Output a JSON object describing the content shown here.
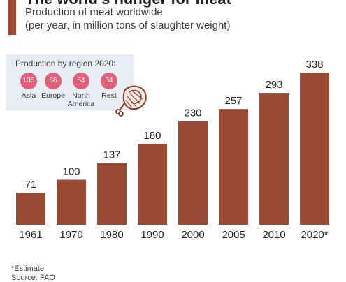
{
  "header": {
    "title": "The world's hunger for meat",
    "subtitle_line1": "Production of meat worldwide",
    "subtitle_line2": "(per year, in million tons of slaughter weight)"
  },
  "regions": {
    "title": "Production by region 2020:",
    "items": [
      {
        "value": "135",
        "label": "Asia"
      },
      {
        "value": "66",
        "label": "Europe"
      },
      {
        "value": "54",
        "label": "North America"
      },
      {
        "value": "84",
        "label": "Rest"
      }
    ]
  },
  "chart_data": {
    "type": "bar",
    "categories": [
      "1961",
      "1970",
      "1980",
      "1990",
      "2000",
      "2005",
      "2010",
      "2020*"
    ],
    "values": [
      71,
      100,
      137,
      180,
      230,
      257,
      293,
      338
    ],
    "title": "Production of meat worldwide",
    "ylabel": "",
    "xlabel": "",
    "ylim": [
      0,
      338
    ],
    "grid": false,
    "legend": "none"
  },
  "footer": {
    "note": "*Estimate",
    "source": "Source: FAO"
  },
  "icons": {
    "ham": "ham-icon"
  },
  "colors": {
    "bar": "#994a34",
    "accent": "#9a4a34",
    "bubble": "#e25f79",
    "panel": "#e8ecf3"
  }
}
